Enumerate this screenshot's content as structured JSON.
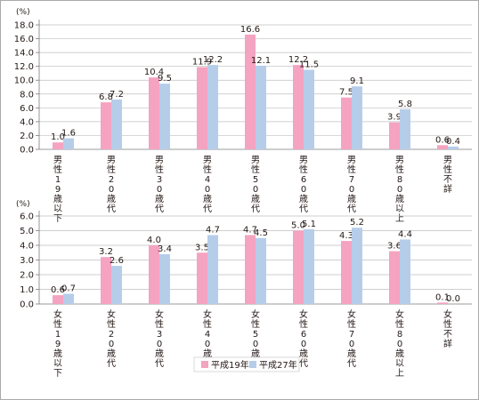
{
  "colors": {
    "series_2007": "#f4a3c0",
    "series_2015": "#b6cdea",
    "axis": "#7a7a7a",
    "grid": "#bfbfbf",
    "frame": "#aaaaaa"
  },
  "legend": {
    "items": [
      "平成19年",
      "平成27年"
    ]
  },
  "chart_data": [
    {
      "type": "bar",
      "unit_label": "(%)",
      "ylim": [
        0,
        18
      ],
      "yticks": [
        "0.0",
        "2.0",
        "4.0",
        "6.0",
        "8.0",
        "10.0",
        "12.0",
        "14.0",
        "16.0",
        "18.0"
      ],
      "categories": [
        "男性19歳以下",
        "男性20歳代",
        "男性30歳代",
        "男性40歳代",
        "男性50歳代",
        "男性60歳代",
        "男性70歳代",
        "男性80歳以上",
        "男性不詳"
      ],
      "series": [
        {
          "name": "平成19年",
          "values": [
            1.0,
            6.8,
            10.4,
            11.9,
            16.6,
            12.2,
            7.5,
            3.9,
            0.6
          ]
        },
        {
          "name": "平成27年",
          "values": [
            1.6,
            7.2,
            9.5,
            12.2,
            12.1,
            11.5,
            9.1,
            5.8,
            0.4
          ]
        }
      ],
      "grid": true,
      "legend": "bottom"
    },
    {
      "type": "bar",
      "unit_label": "(%)",
      "ylim": [
        0,
        6
      ],
      "yticks": [
        "0.0",
        "1.0",
        "2.0",
        "3.0",
        "4.0",
        "5.0",
        "6.0"
      ],
      "categories": [
        "女性19歳以下",
        "女性20歳代",
        "女性30歳代",
        "女性40歳代",
        "女性50歳代",
        "女性60歳代",
        "女性70歳代",
        "女性80歳以上",
        "女性不詳"
      ],
      "series": [
        {
          "name": "平成19年",
          "values": [
            0.6,
            3.2,
            4.0,
            3.5,
            4.7,
            5.0,
            4.3,
            3.6,
            0.1
          ]
        },
        {
          "name": "平成27年",
          "values": [
            0.7,
            2.6,
            3.4,
            4.7,
            4.5,
            5.1,
            5.2,
            4.4,
            0.0
          ]
        }
      ],
      "grid": true,
      "legend": "bottom"
    }
  ]
}
